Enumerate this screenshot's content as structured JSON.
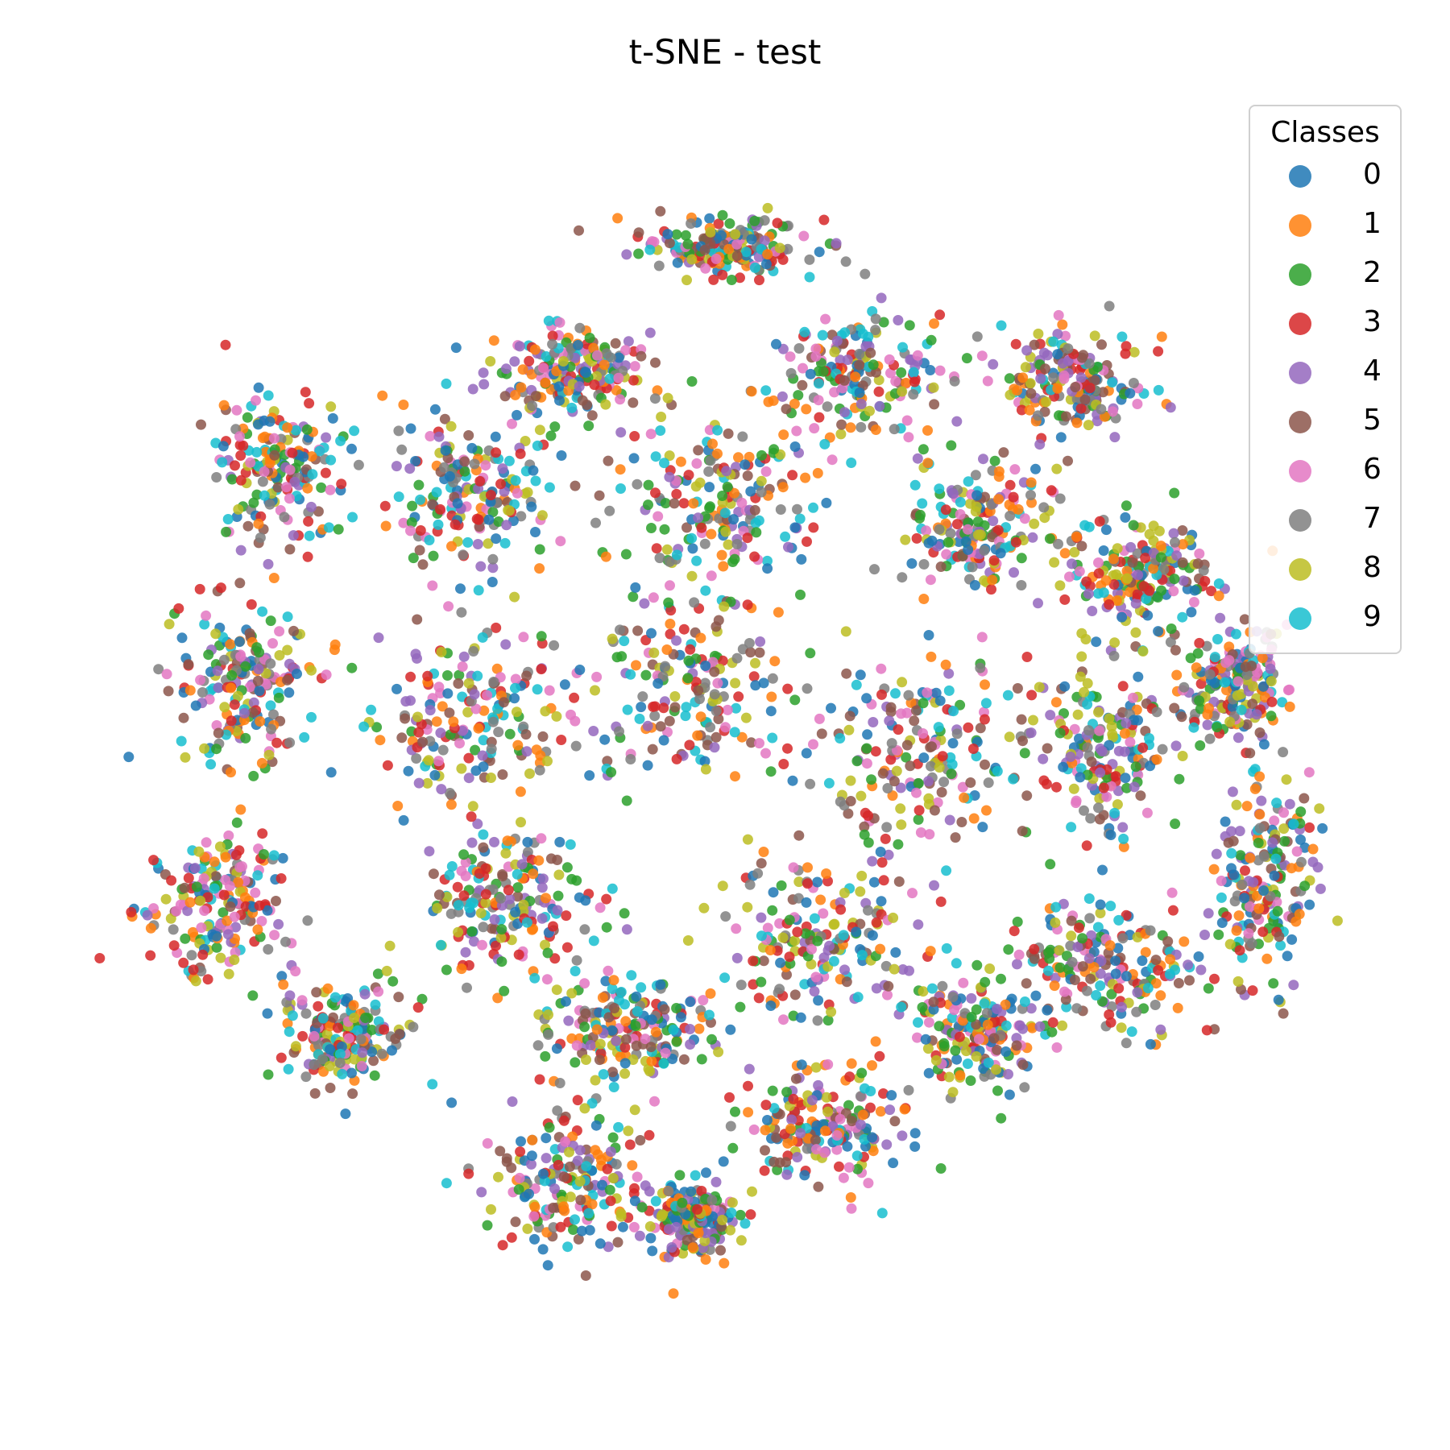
{
  "chart_data": {
    "type": "scatter",
    "title": "t-SNE - test",
    "xlabel": "",
    "ylabel": "",
    "axes_visible": false,
    "grid": false,
    "legend_title": "Classes",
    "legend_position": "upper-right",
    "classes": [
      {
        "label": "0",
        "color": "#1f77b4"
      },
      {
        "label": "1",
        "color": "#ff7f0e"
      },
      {
        "label": "2",
        "color": "#2ca02c"
      },
      {
        "label": "3",
        "color": "#d62728"
      },
      {
        "label": "4",
        "color": "#9467bd"
      },
      {
        "label": "5",
        "color": "#8c564b"
      },
      {
        "label": "6",
        "color": "#e377c2"
      },
      {
        "label": "7",
        "color": "#7f7f7f"
      },
      {
        "label": "8",
        "color": "#bcbd22"
      },
      {
        "label": "9",
        "color": "#17becf"
      }
    ],
    "xlim": [
      -100,
      100
    ],
    "ylim": [
      -100,
      100
    ],
    "clusters": [
      {
        "center": [
          0,
          80
        ],
        "spread": [
          12,
          4
        ]
      },
      {
        "center": [
          -25,
          60
        ],
        "spread": [
          11,
          7
        ]
      },
      {
        "center": [
          20,
          60
        ],
        "spread": [
          14,
          9
        ]
      },
      {
        "center": [
          -70,
          45
        ],
        "spread": [
          10,
          10
        ]
      },
      {
        "center": [
          -40,
          40
        ],
        "spread": [
          12,
          12
        ]
      },
      {
        "center": [
          0,
          40
        ],
        "spread": [
          14,
          12
        ]
      },
      {
        "center": [
          40,
          35
        ],
        "spread": [
          10,
          10
        ]
      },
      {
        "center": [
          55,
          58
        ],
        "spread": [
          10,
          8
        ]
      },
      {
        "center": [
          65,
          28
        ],
        "spread": [
          10,
          8
        ]
      },
      {
        "center": [
          -75,
          10
        ],
        "spread": [
          10,
          12
        ]
      },
      {
        "center": [
          -40,
          5
        ],
        "spread": [
          14,
          14
        ]
      },
      {
        "center": [
          -5,
          10
        ],
        "spread": [
          14,
          14
        ]
      },
      {
        "center": [
          30,
          0
        ],
        "spread": [
          14,
          14
        ]
      },
      {
        "center": [
          60,
          0
        ],
        "spread": [
          10,
          12
        ]
      },
      {
        "center": [
          80,
          10
        ],
        "spread": [
          8,
          8
        ]
      },
      {
        "center": [
          85,
          -20
        ],
        "spread": [
          7,
          16
        ]
      },
      {
        "center": [
          60,
          -35
        ],
        "spread": [
          13,
          10
        ]
      },
      {
        "center": [
          -80,
          -25
        ],
        "spread": [
          10,
          10
        ]
      },
      {
        "center": [
          -60,
          -45
        ],
        "spread": [
          9,
          7
        ]
      },
      {
        "center": [
          -35,
          -25
        ],
        "spread": [
          12,
          10
        ]
      },
      {
        "center": [
          -15,
          -45
        ],
        "spread": [
          12,
          8
        ]
      },
      {
        "center": [
          15,
          -30
        ],
        "spread": [
          14,
          12
        ]
      },
      {
        "center": [
          40,
          -45
        ],
        "spread": [
          10,
          8
        ]
      },
      {
        "center": [
          15,
          -60
        ],
        "spread": [
          12,
          9
        ]
      },
      {
        "center": [
          -25,
          -70
        ],
        "spread": [
          12,
          10
        ]
      },
      {
        "center": [
          -5,
          -75
        ],
        "spread": [
          6,
          5
        ]
      }
    ]
  }
}
